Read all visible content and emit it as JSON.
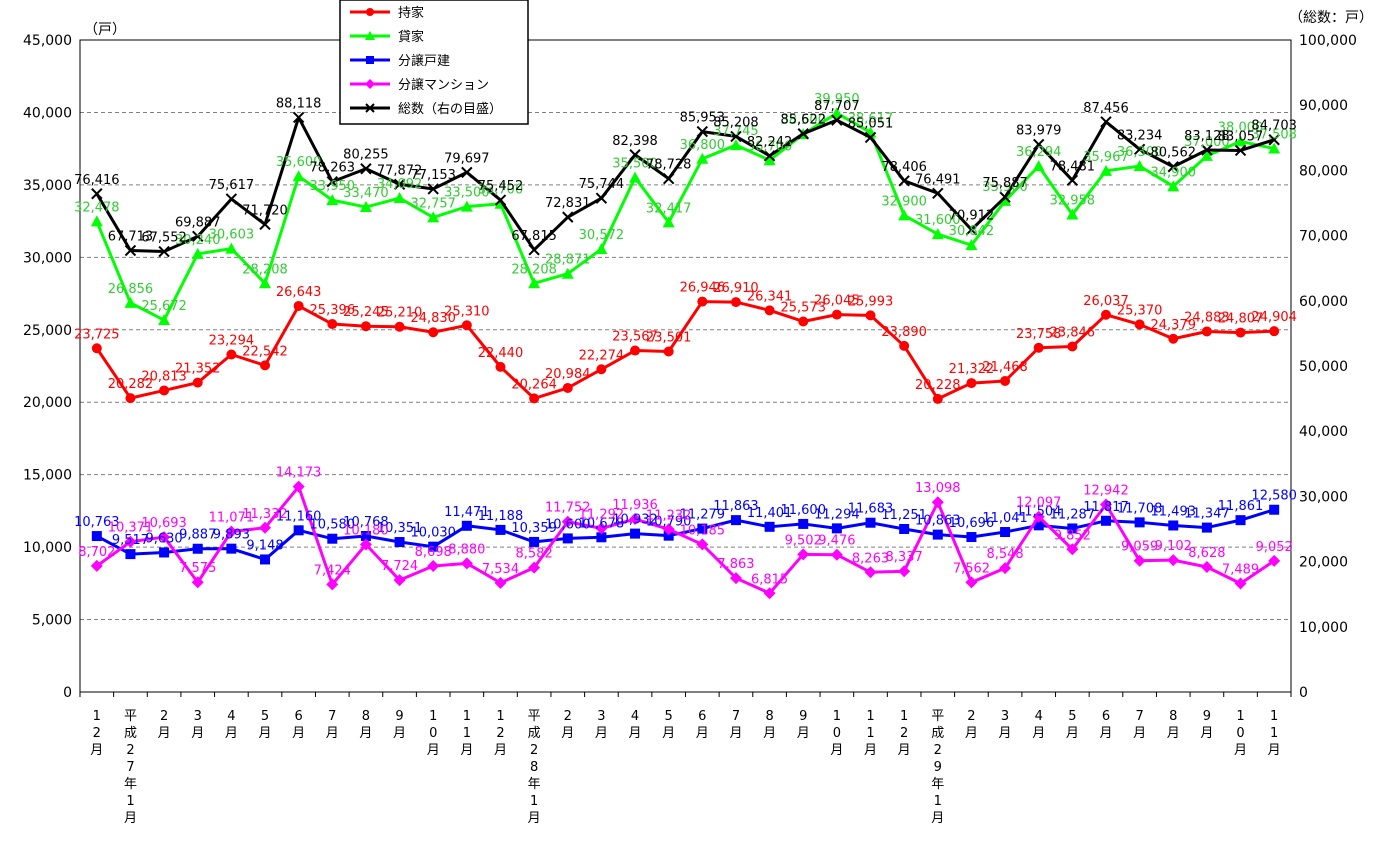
{
  "chart_data": {
    "type": "line",
    "left_unit": "（戸）",
    "right_unit": "（総数：戸）",
    "left_axis": {
      "min": 0,
      "max": 45000,
      "step": 5000,
      "tick_labels": [
        "0",
        "5,000",
        "10,000",
        "15,000",
        "20,000",
        "25,000",
        "30,000",
        "35,000",
        "40,000",
        "45,000"
      ]
    },
    "right_axis": {
      "min": 0,
      "max": 100000,
      "step": 10000,
      "tick_labels": [
        "0",
        "10,000",
        "20,000",
        "30,000",
        "40,000",
        "50,000",
        "60,000",
        "70,000",
        "80,000",
        "90,000",
        "100,000"
      ]
    },
    "grid": "horizontal dashed",
    "legend_position": "top-left",
    "categories": [
      "1\n2\n月",
      "平\n成\n2\n7\n年\n1\n月",
      "2\n月",
      "3\n月",
      "4\n月",
      "5\n月",
      "6\n月",
      "7\n月",
      "8\n月",
      "9\n月",
      "1\n0\n月",
      "1\n1\n月",
      "1\n2\n月",
      "平\n成\n2\n8\n年\n1\n月",
      "2\n月",
      "3\n月",
      "4\n月",
      "5\n月",
      "6\n月",
      "7\n月",
      "8\n月",
      "9\n月",
      "1\n0\n月",
      "1\n1\n月",
      "1\n2\n月",
      "平\n成\n2\n9\n年\n1\n月",
      "2\n月",
      "3\n月",
      "4\n月",
      "5\n月",
      "6\n月",
      "7\n月",
      "8\n月",
      "9\n月",
      "1\n0\n月",
      "1\n1\n月"
    ],
    "series": [
      {
        "name": "持家",
        "axis": "left",
        "color": "#ff0000",
        "marker": "circle",
        "values": [
          23725,
          20282,
          20813,
          21352,
          23294,
          22542,
          26643,
          25396,
          25245,
          25210,
          24830,
          25310,
          22440,
          20264,
          20984,
          22274,
          23567,
          23501,
          26946,
          26910,
          26341,
          25573,
          26045,
          25993,
          23890,
          20228,
          21322,
          21468,
          23758,
          23846,
          26037,
          25370,
          24379,
          24883,
          24807,
          24904
        ],
        "labels": [
          "23,725",
          "20,282",
          "20,813",
          "21,352",
          "23,294",
          "22,542",
          "26,643",
          "25,396",
          "25,245",
          "25,210",
          "24,830",
          "25,310",
          "22,440",
          "20,264",
          "20,984",
          "22,274",
          "23,567",
          "23,501",
          "26,946",
          "26,910",
          "26,341",
          "25,573",
          "26,045",
          "25,993",
          "23,890",
          "20,228",
          "21,322",
          "21,468",
          "23,758",
          "23,846",
          "26,037",
          "25,370",
          "24,379",
          "24,883",
          "24,807",
          "24,904"
        ]
      },
      {
        "name": "貸家",
        "axis": "left",
        "color": "#00ff00",
        "label_color": "#33cc33",
        "marker": "triangle",
        "values": [
          32478,
          26856,
          25672,
          30240,
          30603,
          28208,
          35600,
          33950,
          33470,
          34092,
          32757,
          33500,
          33700,
          28208,
          28871,
          30572,
          35500,
          32417,
          36800,
          37745,
          36700,
          38500,
          39950,
          38617,
          32900,
          31600,
          30842,
          33900,
          36294,
          32958,
          35967,
          36300,
          34900,
          37000,
          38000,
          37508
        ],
        "labels": [
          "32,478",
          "26,856",
          "25,672",
          "30,240",
          "30,603",
          "28,208",
          "35,600",
          "33,950",
          "33,470",
          "34,092",
          "32,757",
          "33,500",
          "33,700",
          "28,208",
          "28,871",
          "30,572",
          "35,500",
          "32,417",
          "36,800",
          "37,745",
          "36,700",
          "38,500",
          "39,950",
          "38,617",
          "32,900",
          "31,600",
          "30,842",
          "33,900",
          "36,294",
          "32,958",
          "35,967",
          "36,300",
          "34,900",
          "37,000",
          "38,000",
          "37,508"
        ]
      },
      {
        "name": "分譲戸建",
        "axis": "left",
        "color": "#0000ff",
        "marker": "square",
        "values": [
          10763,
          9517,
          9630,
          9887,
          9893,
          9148,
          11160,
          10580,
          10768,
          10351,
          10030,
          11471,
          11188,
          10359,
          10600,
          10678,
          10932,
          10790,
          11279,
          11863,
          11401,
          11600,
          11294,
          11683,
          11251,
          10863,
          10696,
          11041,
          11504,
          11287,
          11817,
          11708,
          11493,
          11347,
          11861,
          12580
        ],
        "labels": [
          "10,763",
          "9,517",
          "9,630",
          "9,887",
          "9,893",
          "9,148",
          "11,160",
          "10,580",
          "10,768",
          "10,351",
          "10,030",
          "11,471",
          "11,188",
          "10,359",
          "10,600",
          "10,678",
          "10,932",
          "10,790",
          "11,279",
          "11,863",
          "11,401",
          "11,600",
          "11,294",
          "11,683",
          "11,251",
          "10,863",
          "10,696",
          "11,041",
          "11,504",
          "11,287",
          "11,817",
          "11,708",
          "11,493",
          "11,347",
          "11,861",
          "12,580"
        ]
      },
      {
        "name": "分譲マンション",
        "axis": "left",
        "color": "#ff00ff",
        "marker": "diamond",
        "values": [
          8702,
          10371,
          10693,
          7575,
          11071,
          11332,
          14173,
          7424,
          10180,
          7724,
          8698,
          8880,
          7534,
          8582,
          11752,
          11292,
          11936,
          11232,
          10185,
          7863,
          6815,
          9502,
          9476,
          8263,
          8337,
          13098,
          7562,
          8548,
          12097,
          9852,
          12942,
          9059,
          9102,
          8628,
          7489,
          9052
        ],
        "labels": [
          "8,702",
          "10,371",
          "10,693",
          "7,575",
          "11,071",
          "11,332",
          "14,173",
          "7,424",
          "10,180",
          "7,724",
          "8,698",
          "8,880",
          "7,534",
          "8,582",
          "11,752",
          "11,292",
          "11,936",
          "11,232",
          "10,185",
          "7,863",
          "6,815",
          "9,502",
          "9,476",
          "8,263",
          "8,337",
          "13,098",
          "7,562",
          "8,548",
          "12,097",
          "9,852",
          "12,942",
          "9,059",
          "9,102",
          "8,628",
          "7,489",
          "9,052"
        ]
      },
      {
        "name": "総数（右の目盛）",
        "axis": "right",
        "color": "#000000",
        "marker": "x",
        "values": [
          76416,
          67713,
          67552,
          69887,
          75617,
          71720,
          88118,
          78263,
          80255,
          77872,
          77153,
          79697,
          75452,
          67815,
          72831,
          75744,
          82398,
          78728,
          85953,
          85208,
          82242,
          85622,
          87707,
          85051,
          78406,
          76491,
          70912,
          75887,
          83979,
          78481,
          87456,
          83234,
          80562,
          83128,
          83057,
          84703
        ],
        "labels": [
          "76,416",
          "67,713",
          "67,552",
          "69,887",
          "75,617",
          "71,720",
          "88,118",
          "78,263",
          "80,255",
          "77,872",
          "77,153",
          "79,697",
          "75,452",
          "67,815",
          "72,831",
          "75,744",
          "82,398",
          "78,728",
          "85,953",
          "85,208",
          "82,242",
          "85,622",
          "87,707",
          "85,051",
          "78,406",
          "76,491",
          "70,912",
          "75,887",
          "83,979",
          "78,481",
          "87,456",
          "83,234",
          "80,562",
          "83,128",
          "83,057",
          "84,703"
        ]
      }
    ]
  }
}
